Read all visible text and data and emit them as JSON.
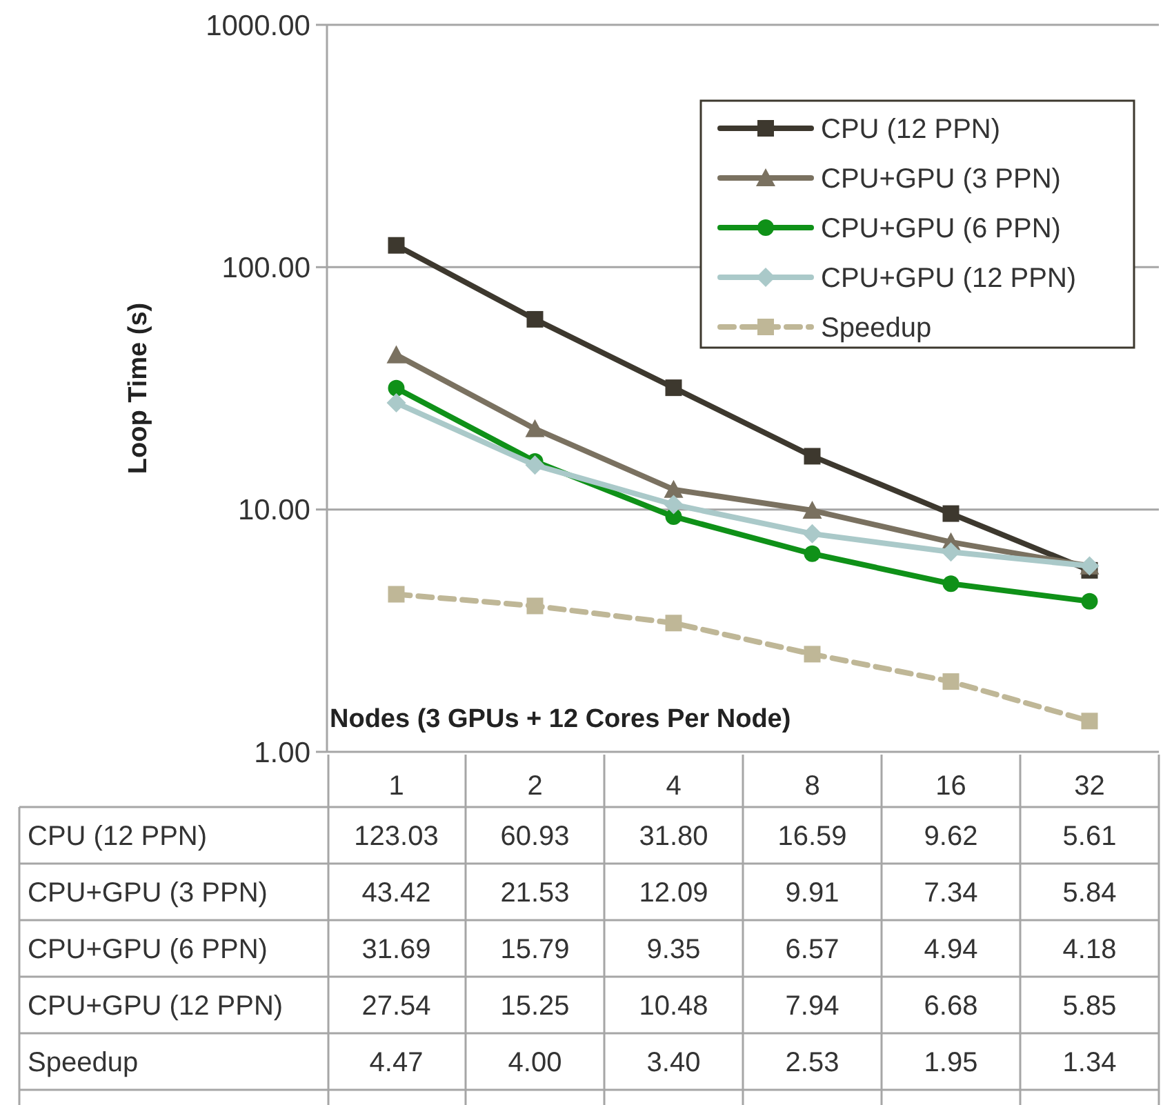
{
  "chart_data": {
    "type": "line",
    "xlabel": "Nodes (3 GPUs + 12 Cores Per Node)",
    "ylabel": "Loop Time (s)",
    "categories": [
      "1",
      "2",
      "4",
      "8",
      "16",
      "32"
    ],
    "series": [
      {
        "name": "CPU (12 PPN)",
        "color": "#3d382e",
        "marker": "square",
        "line_style": "solid",
        "values": [
          123.03,
          60.93,
          31.8,
          16.59,
          9.62,
          5.61
        ],
        "value_labels": [
          "123.03",
          "60.93",
          "31.80",
          "16.59",
          "9.62",
          "5.61"
        ]
      },
      {
        "name": "CPU+GPU (3 PPN)",
        "color": "#7a7160",
        "marker": "triangle",
        "line_style": "solid",
        "values": [
          43.42,
          21.53,
          12.09,
          9.91,
          7.34,
          5.84
        ],
        "value_labels": [
          "43.42",
          "21.53",
          "12.09",
          "9.91",
          "7.34",
          "5.84"
        ]
      },
      {
        "name": "CPU+GPU (6 PPN)",
        "color": "#0f9118",
        "marker": "circle",
        "line_style": "solid",
        "values": [
          31.69,
          15.79,
          9.35,
          6.57,
          4.94,
          4.18
        ],
        "value_labels": [
          "31.69",
          "15.79",
          "9.35",
          "6.57",
          "4.94",
          "4.18"
        ]
      },
      {
        "name": "CPU+GPU (12 PPN)",
        "color": "#aac9c9",
        "marker": "diamond",
        "line_style": "solid",
        "values": [
          27.54,
          15.25,
          10.48,
          7.94,
          6.68,
          5.85
        ],
        "value_labels": [
          "27.54",
          "15.25",
          "10.48",
          "7.94",
          "6.68",
          "5.85"
        ]
      },
      {
        "name": "Speedup",
        "color": "#bfb797",
        "marker": "square",
        "line_style": "dashed",
        "values": [
          4.47,
          4.0,
          3.4,
          2.53,
          1.95,
          1.34
        ],
        "value_labels": [
          "4.47",
          "4.00",
          "3.40",
          "2.53",
          "1.95",
          "1.34"
        ]
      }
    ],
    "log": true,
    "ylim": [
      1,
      1000
    ],
    "yticks": [
      {
        "value": 1,
        "label": "1.00"
      },
      {
        "value": 10,
        "label": "10.00"
      },
      {
        "value": 100,
        "label": "100.00"
      },
      {
        "value": 1000,
        "label": "1000.00"
      }
    ],
    "grid": "y",
    "legend": "top right"
  }
}
